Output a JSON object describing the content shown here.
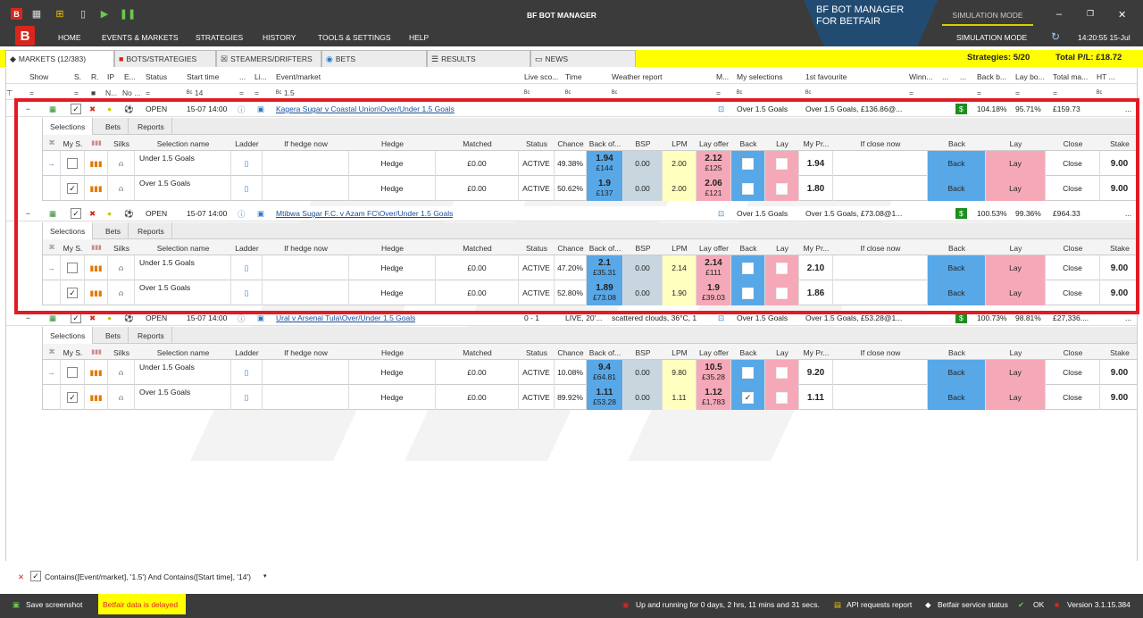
{
  "app": {
    "title": "BF BOT MANAGER",
    "brand_line1": "BF BOT MANAGER",
    "brand_line2": "FOR BETFAIR",
    "mode_top": "SIMULATION MODE",
    "mode_label": "SIMULATION MODE",
    "clock": "14:20:55 15-Jul",
    "logo": "B"
  },
  "menu": [
    "HOME",
    "EVENTS & MARKETS",
    "STRATEGIES",
    "HISTORY",
    "TOOLS & SETTINGS",
    "HELP"
  ],
  "tabs": [
    {
      "label": "MARKETS (12/383)",
      "icon": "markets-icon"
    },
    {
      "label": "BOTS/STRATEGIES",
      "icon": "bots-icon"
    },
    {
      "label": "STEAMERS/DRIFTERS",
      "icon": "steamers-icon"
    },
    {
      "label": "BETS",
      "icon": "bets-icon"
    },
    {
      "label": "RESULTS",
      "icon": "results-icon"
    },
    {
      "label": "NEWS",
      "icon": "news-icon"
    }
  ],
  "summary": {
    "strategies": "Strategies: 5/20",
    "pl": "Total P/L: £18.72"
  },
  "columns": [
    "Show",
    "S.",
    "R.",
    "IP",
    "E...",
    "Status",
    "Start time",
    "...",
    "Li...",
    "Event/market",
    "Live sco...",
    "Time",
    "Weather report",
    "M...",
    "My selections",
    "1st favourite",
    "Winn...",
    "...",
    "...",
    "Back b...",
    "Lay bo...",
    "Total ma...",
    "HT ..."
  ],
  "filters": {
    "f1": "=",
    "f2": "N...",
    "f3": "No ...",
    "start": "14",
    "event": "1.5"
  },
  "sub_tabs": [
    "Selections",
    "Bets",
    "Reports"
  ],
  "sub_cols": [
    "My S.",
    "Silks",
    "Selection name",
    "Ladder",
    "If hedge now",
    "Hedge",
    "Matched",
    "Status",
    "Chance",
    "Back of...",
    "BSP",
    "LPM",
    "Lay offer",
    "Back",
    "Lay",
    "My Pr...",
    "If close now",
    "Back",
    "Lay",
    "Close",
    "Stake"
  ],
  "markets": [
    {
      "status": "OPEN",
      "start": "15-07 14:00",
      "event": "Kagera Sugar v Coastal Union\\Over/Under 1.5 Goals",
      "score": "",
      "time": "",
      "weather": "",
      "mysel": "Over 1.5 Goals",
      "fav": "Over 1.5 Goals, £136.86@...",
      "backb": "104.18%",
      "layb": "95.71%",
      "total": "£159.73",
      "sels": [
        {
          "name": "Under 1.5 Goals",
          "hedge": "Hedge",
          "matched": "£0.00",
          "status": "ACTIVE",
          "chance": "49.38%",
          "back_odds": "1.94",
          "back_amt": "£144",
          "bsp": "0.00",
          "lpm": "2.00",
          "lay_odds": "2.12",
          "lay_amt": "£125",
          "mypr": "1.94",
          "back": "Back",
          "lay": "Lay",
          "close": "Close",
          "stake": "9.00"
        },
        {
          "name": "Over 1.5 Goals",
          "hedge": "Hedge",
          "matched": "£0.00",
          "status": "ACTIVE",
          "chance": "50.62%",
          "back_odds": "1.9",
          "back_amt": "£137",
          "bsp": "0.00",
          "lpm": "2.00",
          "lay_odds": "2.06",
          "lay_amt": "£121",
          "mypr": "1.80",
          "back": "Back",
          "lay": "Lay",
          "close": "Close",
          "stake": "9.00"
        }
      ]
    },
    {
      "status": "OPEN",
      "start": "15-07 14:00",
      "event": "Mtibwa Sugar F.C. v Azam FC\\Over/Under 1.5 Goals",
      "score": "",
      "time": "",
      "weather": "",
      "mysel": "Over 1.5 Goals",
      "fav": "Over 1.5 Goals, £73.08@1...",
      "backb": "100.53%",
      "layb": "99.36%",
      "total": "£964.33",
      "sels": [
        {
          "name": "Under 1.5 Goals",
          "hedge": "Hedge",
          "matched": "£0.00",
          "status": "ACTIVE",
          "chance": "47.20%",
          "back_odds": "2.1",
          "back_amt": "£35.31",
          "bsp": "0.00",
          "lpm": "2.14",
          "lay_odds": "2.14",
          "lay_amt": "£111",
          "mypr": "2.10",
          "back": "Back",
          "lay": "Lay",
          "close": "Close",
          "stake": "9.00"
        },
        {
          "name": "Over 1.5 Goals",
          "hedge": "Hedge",
          "matched": "£0.00",
          "status": "ACTIVE",
          "chance": "52.80%",
          "back_odds": "1.89",
          "back_amt": "£73.08",
          "bsp": "0.00",
          "lpm": "1.90",
          "lay_odds": "1.9",
          "lay_amt": "£39.03",
          "mypr": "1.86",
          "back": "Back",
          "lay": "Lay",
          "close": "Close",
          "stake": "9.00"
        }
      ]
    },
    {
      "status": "OPEN",
      "start": "15-07 14:00",
      "event": "Ural v Arsenal Tula\\Over/Under 1.5 Goals",
      "score": "0 - 1",
      "time": "LIVE, 20'...",
      "weather": "scattered clouds, 36°C, 1",
      "mysel": "Over 1.5 Goals",
      "fav": "Over 1.5 Goals, £53.28@1...",
      "backb": "100.73%",
      "layb": "98.81%",
      "total": "£27,336....",
      "sels": [
        {
          "name": "Under 1.5 Goals",
          "hedge": "Hedge",
          "matched": "£0.00",
          "status": "ACTIVE",
          "chance": "10.08%",
          "back_odds": "9.4",
          "back_amt": "£64.81",
          "bsp": "0.00",
          "lpm": "9.80",
          "lay_odds": "10.5",
          "lay_amt": "£35.28",
          "mypr": "9.20",
          "back": "Back",
          "lay": "Lay",
          "close": "Close",
          "stake": "9.00"
        },
        {
          "name": "Over 1.5 Goals",
          "hedge": "Hedge",
          "matched": "£0.00",
          "status": "ACTIVE",
          "chance": "89.92%",
          "back_odds": "1.11",
          "back_amt": "£53.28",
          "bsp": "0.00",
          "lpm": "1.11",
          "lay_odds": "1.12",
          "lay_amt": "£1,783",
          "mypr": "1.11",
          "back": "Back",
          "lay": "Lay",
          "close": "Close",
          "stake": "9.00"
        }
      ]
    }
  ],
  "filter_expr": "Contains([Event/market], '1.5') And Contains([Start time], '14')",
  "statusbar": {
    "save": "Save screenshot",
    "delayed": "Betfair data is delayed",
    "uptime": "Up and running for 0 days, 2 hrs, 11 mins and 31 secs.",
    "api": "API requests report",
    "service": "Betfair service status",
    "ok": "OK",
    "version": "Version 3.1.15.384"
  },
  "colors": {
    "accent": "#ffff00",
    "brand": "#d8261f",
    "back": "#58a8e8",
    "lay": "#f5a9b8",
    "highlight": "#e21b22"
  }
}
